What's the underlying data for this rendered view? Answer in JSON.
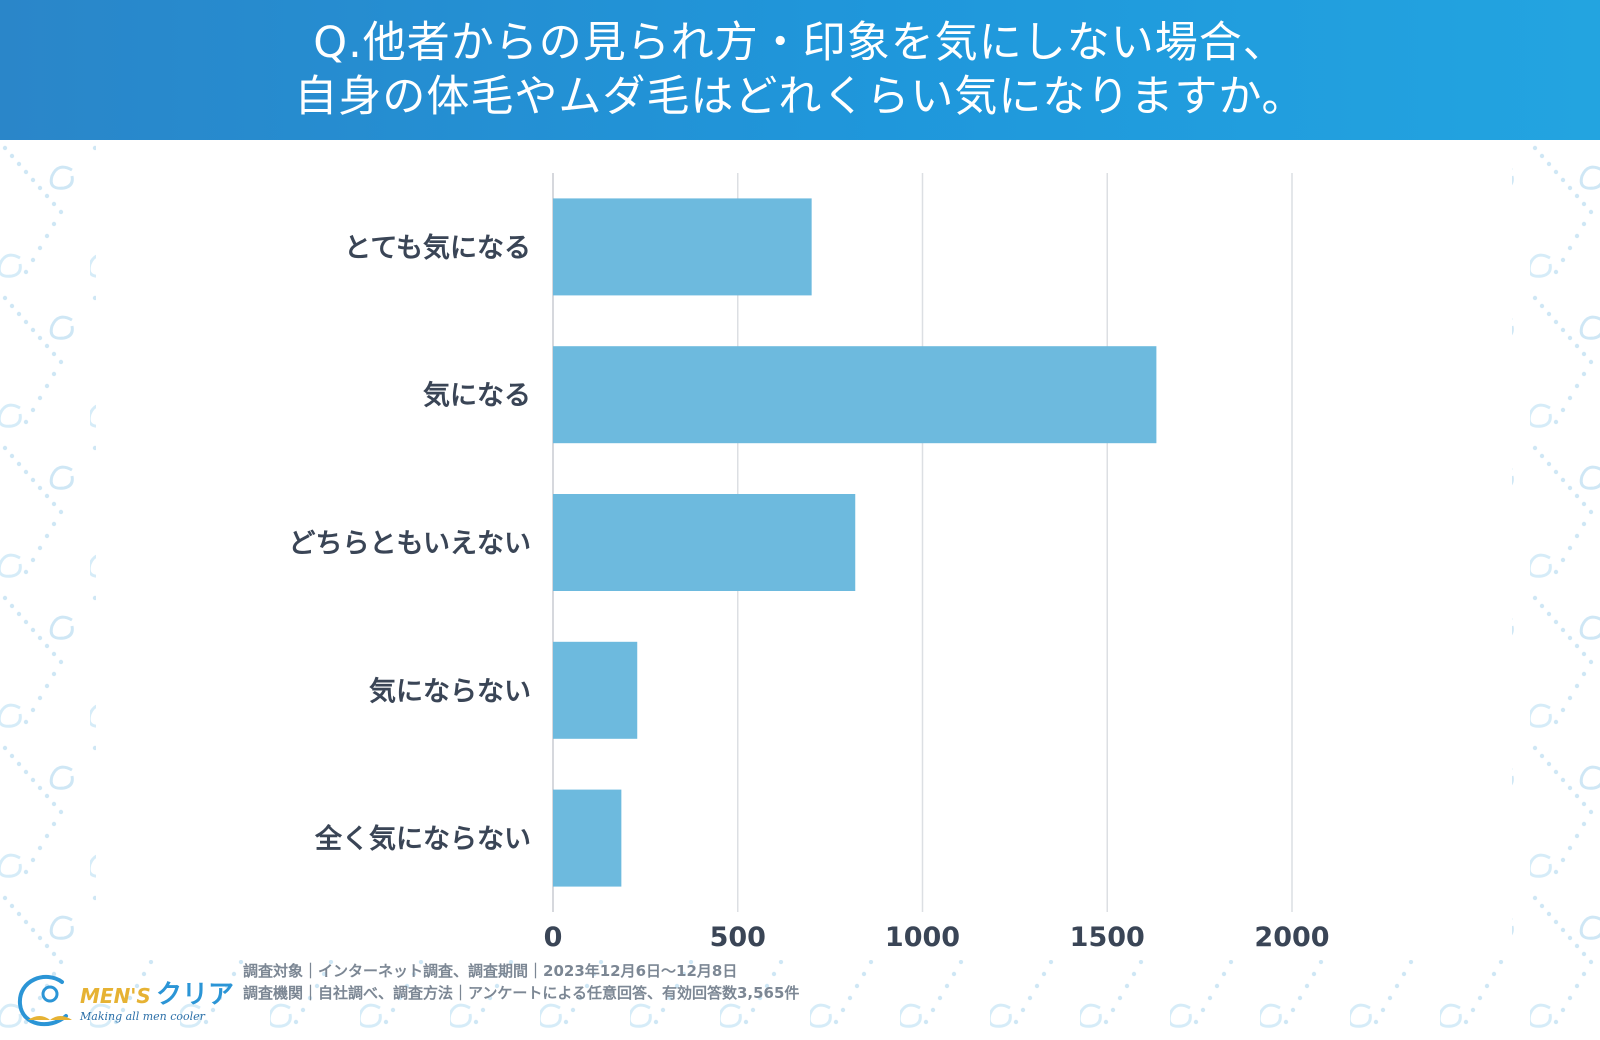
{
  "header": {
    "title_line1": "Q.他者からの見られ方・印象を気にしない場合、",
    "title_line2": "自身の体毛やムダ毛はどれくらい気になりますか。"
  },
  "chart_data": {
    "type": "bar",
    "orientation": "horizontal",
    "categories": [
      "とても気になる",
      "気になる",
      "どちらともいえない",
      "気にならない",
      "全く気にならない"
    ],
    "values": [
      700,
      1633,
      818,
      228,
      185
    ],
    "xlim": [
      0,
      2000
    ],
    "xticks": [
      0,
      500,
      1000,
      1500,
      2000
    ],
    "grid": true,
    "bar_color": "#6dbade",
    "grid_color": "#dcdfe3",
    "axis_color": "#c8ccd2"
  },
  "footer": {
    "brand_en": "MEN'S",
    "brand_ja": "クリア",
    "tagline": "Making all men cooler",
    "meta_line1": "調査対象｜インターネット調査、調査期間｜2023年12月6日〜12月8日",
    "meta_line2": "調査機関｜自社調べ、調査方法｜アンケートによる任意回答、有効回答数3,565件"
  },
  "colors": {
    "header_bg": "#2290d6",
    "label_text": "#3a4556",
    "meta_text": "#7c8794",
    "brand_yellow": "#e6b233",
    "brand_blue": "#2b95d6"
  }
}
